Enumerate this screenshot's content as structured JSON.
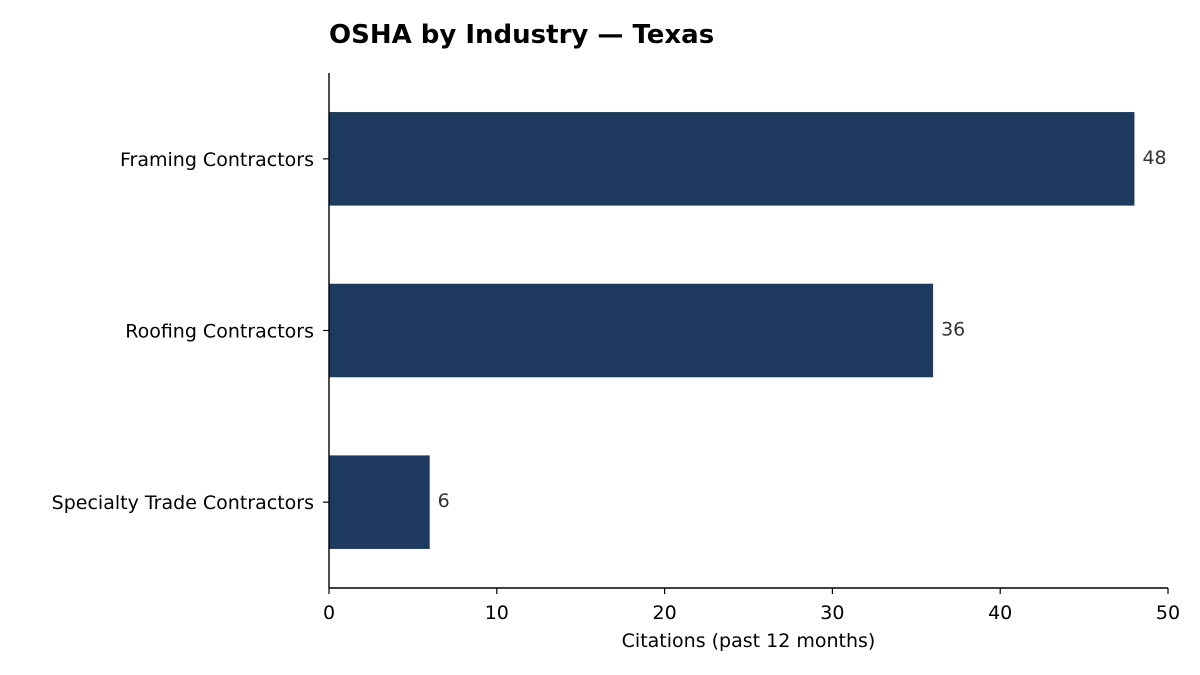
{
  "chart_data": {
    "type": "bar",
    "orientation": "horizontal",
    "title": "OSHA by Industry — Texas",
    "xlabel": "Citations (past 12 months)",
    "ylabel": "",
    "categories": [
      "Framing Contractors",
      "Roofing Contractors",
      "Specialty Trade Contractors"
    ],
    "values": [
      48,
      36,
      6
    ],
    "data_labels": [
      "48",
      "36",
      "6"
    ],
    "xlim": [
      0,
      50
    ],
    "xticks": [
      0,
      10,
      20,
      30,
      40,
      50
    ],
    "xtick_labels": [
      "0",
      "10",
      "20",
      "30",
      "40",
      "50"
    ],
    "grid": false,
    "legend": "none",
    "bar_color": "#1f3a5f"
  }
}
